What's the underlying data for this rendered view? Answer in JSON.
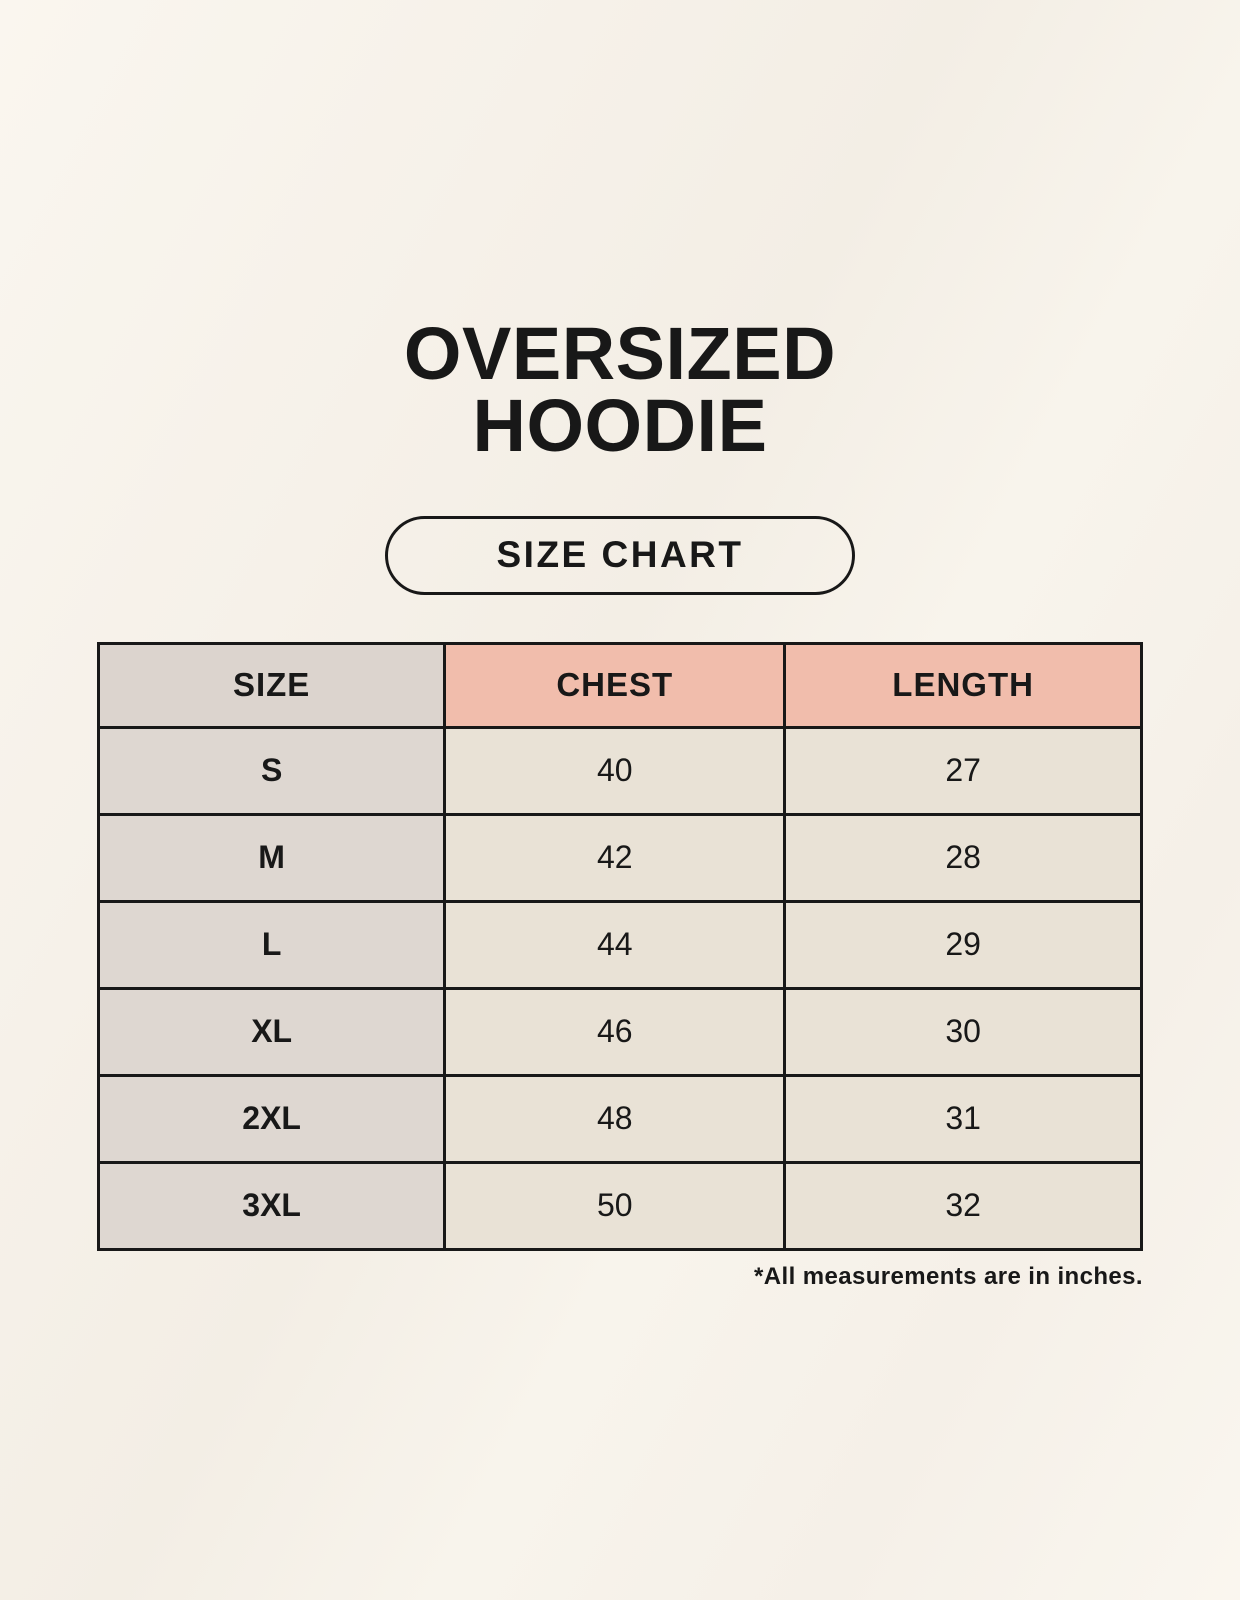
{
  "page": {
    "title_line1": "OVERSIZED",
    "title_line2": "HOODIE",
    "badge_label": "SIZE CHART",
    "note": "*All measurements are in inches."
  },
  "table": {
    "columns": [
      "SIZE",
      "CHEST",
      "LENGTH"
    ],
    "rows": [
      {
        "size": "S",
        "chest": "40",
        "length": "27"
      },
      {
        "size": "M",
        "chest": "42",
        "length": "28"
      },
      {
        "size": "L",
        "chest": "44",
        "length": "29"
      },
      {
        "size": "XL",
        "chest": "46",
        "length": "30"
      },
      {
        "size": "2XL",
        "chest": "48",
        "length": "31"
      },
      {
        "size": "3XL",
        "chest": "50",
        "length": "32"
      }
    ]
  },
  "chart_data": {
    "type": "table",
    "title": "OVERSIZED HOODIE",
    "subtitle": "SIZE CHART",
    "columns": [
      "SIZE",
      "CHEST",
      "LENGTH"
    ],
    "units": "inches",
    "rows": [
      [
        "S",
        40,
        27
      ],
      [
        "M",
        42,
        28
      ],
      [
        "L",
        44,
        29
      ],
      [
        "XL",
        46,
        30
      ],
      [
        "2XL",
        48,
        31
      ],
      [
        "3XL",
        50,
        32
      ]
    ],
    "footnote": "*All measurements are in inches."
  },
  "colors": {
    "background": "#f7f2ea",
    "ink": "#181818",
    "size_column": "#ded7d1",
    "size_header": "#dcd4ce",
    "accent_header_pink": "#f1bdac",
    "data_cell_cream": "#e9e2d6",
    "table_border": "#181818"
  }
}
